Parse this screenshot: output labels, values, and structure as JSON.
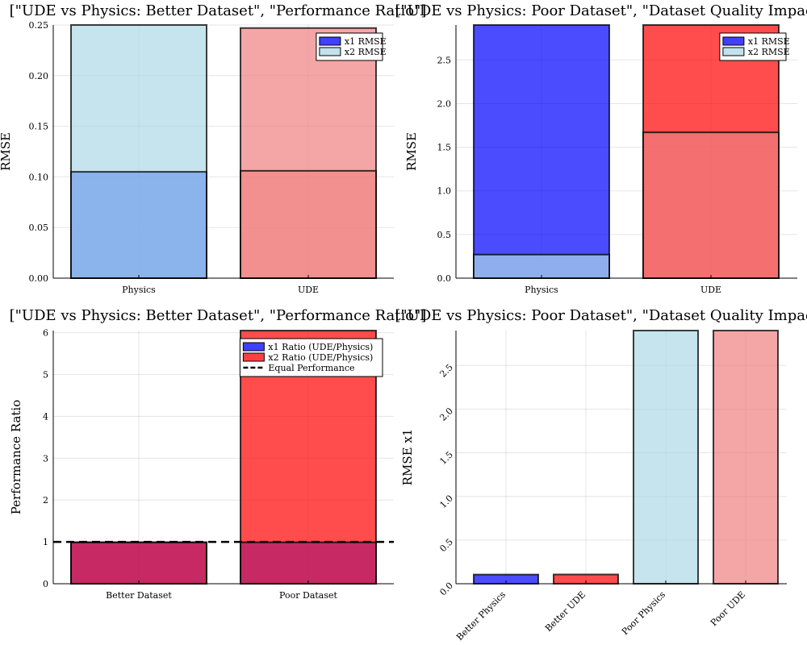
{
  "chart_data": [
    {
      "type": "bar",
      "title": "[\"UDE vs Physics: Better Dataset\", \"Performance Ratio\"]",
      "ylabel": "RMSE",
      "xlabel": "",
      "categories": [
        "Physics",
        "UDE"
      ],
      "ylim": [
        0,
        0.25
      ],
      "yticks": [
        "0.00",
        "0.05",
        "0.10",
        "0.15",
        "0.20",
        "0.25"
      ],
      "grid": true,
      "legend_position": "top-right",
      "legend": [
        {
          "label": "x1 RMSE",
          "color": "#0000ff"
        },
        {
          "label": "x2 RMSE",
          "color": "#add8e6"
        }
      ],
      "bars": [
        {
          "category": "Physics",
          "value": 0.25,
          "color": "#add8e6",
          "opacity": 0.7
        },
        {
          "category": "UDE",
          "value": 0.247,
          "color": "#f08080",
          "opacity": 0.7
        },
        {
          "category": "Physics",
          "value": 0.105,
          "color": "#6495ed",
          "opacity": 0.6
        },
        {
          "category": "UDE",
          "value": 0.106,
          "color": "#f08080",
          "opacity": 0.6
        }
      ]
    },
    {
      "type": "bar",
      "title": "[\"UDE vs Physics: Poor Dataset\", \"Dataset Quality Impact\"]",
      "ylabel": "RMSE",
      "xlabel": "",
      "categories": [
        "Physics",
        "UDE"
      ],
      "ylim": [
        0,
        2.9
      ],
      "yticks": [
        "0.0",
        "0.5",
        "1.0",
        "1.5",
        "2.0",
        "2.5"
      ],
      "grid": true,
      "legend_position": "top-right",
      "legend": [
        {
          "label": "x1 RMSE",
          "color": "#0000ff"
        },
        {
          "label": "x2 RMSE",
          "color": "#add8e6"
        }
      ],
      "bars": [
        {
          "category": "Physics",
          "value": 2.9,
          "color": "#0000ff",
          "opacity": 0.7
        },
        {
          "category": "UDE",
          "value": 2.9,
          "color": "#ff0000",
          "opacity": 0.7
        },
        {
          "category": "Physics",
          "value": 0.27,
          "color": "#add8e6",
          "opacity": 0.7
        },
        {
          "category": "UDE",
          "value": 1.67,
          "color": "#f08080",
          "opacity": 0.7
        }
      ]
    },
    {
      "type": "bar",
      "title": "[\"UDE vs Physics: Better Dataset\", \"Performance Ratio\"]",
      "ylabel": "Performance Ratio",
      "xlabel": "",
      "categories": [
        "Better Dataset",
        "Poor Dataset"
      ],
      "ylim": [
        0,
        6.05
      ],
      "yticks": [
        "0",
        "1",
        "2",
        "3",
        "4",
        "5",
        "6"
      ],
      "grid": true,
      "legend_position": "top-right",
      "legend": [
        {
          "label": "x1 Ratio (UDE/Physics)",
          "color": "#0000ff"
        },
        {
          "label": "x2 Ratio (UDE/Physics)",
          "color": "#ff0000"
        },
        {
          "label": "Equal Performance",
          "color": "#000000",
          "dashed": true
        }
      ],
      "bars": [
        {
          "category": "Better Dataset",
          "value": 0.99,
          "color": "#ff0000",
          "opacity": 0.7
        },
        {
          "category": "Poor Dataset",
          "value": 6.05,
          "color": "#ff0000",
          "opacity": 0.7
        },
        {
          "category": "Better Dataset",
          "value": 0.99,
          "color": "#800080",
          "opacity": 0.45
        },
        {
          "category": "Poor Dataset",
          "value": 0.99,
          "color": "#800080",
          "opacity": 0.45
        }
      ],
      "hline": {
        "value": 1.0,
        "label": "Equal Performance",
        "color": "#000000",
        "dashed": true
      }
    },
    {
      "type": "bar",
      "title": "[\"UDE vs Physics: Poor Dataset\", \"Dataset Quality Impact\"]",
      "ylabel": "RMSE x1",
      "xlabel": "",
      "categories": [
        "Better Physics",
        "Better UDE",
        "Poor Physics",
        "Poor UDE"
      ],
      "ylim": [
        0,
        2.9
      ],
      "yticks": [
        "0.0",
        "0.5",
        "1.0",
        "1.5",
        "2.0",
        "2.5"
      ],
      "grid": true,
      "legend_position": "none",
      "bars": [
        {
          "category": "Better Physics",
          "value": 0.105,
          "color": "#0000ff",
          "opacity": 0.7
        },
        {
          "category": "Better UDE",
          "value": 0.106,
          "color": "#ff0000",
          "opacity": 0.7
        },
        {
          "category": "Poor Physics",
          "value": 2.9,
          "color": "#add8e6",
          "opacity": 0.7
        },
        {
          "category": "Poor UDE",
          "value": 2.9,
          "color": "#f08080",
          "opacity": 0.7
        }
      ]
    }
  ]
}
